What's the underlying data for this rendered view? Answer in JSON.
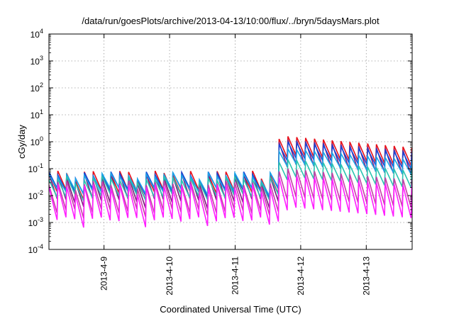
{
  "chart_data": {
    "type": "line",
    "title": "/data/run/goesPlots/archive/2013-04-13/10:00/flux/../bryn/5daysMars.plot",
    "xlabel": "Coordinated Universal Time (UTC)",
    "ylabel": "cGy/day",
    "x_axis": {
      "type": "time",
      "range_days": [
        0,
        5.54
      ],
      "ticks": [
        {
          "label": "2013-4-9",
          "day": 0.84
        },
        {
          "label": "2013-4-10",
          "day": 1.84
        },
        {
          "label": "2013-4-11",
          "day": 2.84
        },
        {
          "label": "2013-4-12",
          "day": 3.84
        },
        {
          "label": "2013-4-13",
          "day": 4.84
        }
      ]
    },
    "y_axis": {
      "scale": "log",
      "ylim_exponent": [
        -4,
        4
      ],
      "ticks": [
        {
          "base": "10",
          "exp": "4",
          "value": 10000
        },
        {
          "base": "10",
          "exp": "3",
          "value": 1000
        },
        {
          "base": "10",
          "exp": "2",
          "value": 100
        },
        {
          "base": "10",
          "exp": "1",
          "value": 10
        },
        {
          "base": "10",
          "exp": "0",
          "value": 1
        },
        {
          "base": "10",
          "exp": "-1",
          "value": 0.1
        },
        {
          "base": "10",
          "exp": "-2",
          "value": 0.01
        },
        {
          "base": "10",
          "exp": "-3",
          "value": 0.001
        },
        {
          "base": "10",
          "exp": "-4",
          "value": 0.0001
        }
      ]
    },
    "grid": true,
    "legend": "none",
    "pattern": {
      "period_days": 0.135,
      "event_start_day": 3.38,
      "event_peak_day": 3.62,
      "decay_per_day": 0.22
    },
    "series": [
      {
        "color": "#e8101a",
        "base_peak": 0.07,
        "low_ratio": 0.2,
        "event_peak": 1.6
      },
      {
        "color": "#7c1a7e",
        "base_peak": 0.055,
        "low_ratio": 0.12,
        "event_peak": 1.2
      },
      {
        "color": "#1846d6",
        "base_peak": 0.065,
        "low_ratio": 0.25,
        "event_peak": 1.0
      },
      {
        "color": "#1aa5e8",
        "base_peak": 0.06,
        "low_ratio": 0.28,
        "event_peak": 0.55
      },
      {
        "color": "#2ac4b0",
        "base_peak": 0.045,
        "low_ratio": 0.22,
        "event_peak": 0.22
      },
      {
        "color": "#c63ea8",
        "base_peak": 0.03,
        "low_ratio": 0.09,
        "event_peak": 0.1
      },
      {
        "color": "#ff1fff",
        "base_peak": 0.022,
        "low_ratio": 0.06,
        "event_peak": 0.06
      }
    ]
  }
}
